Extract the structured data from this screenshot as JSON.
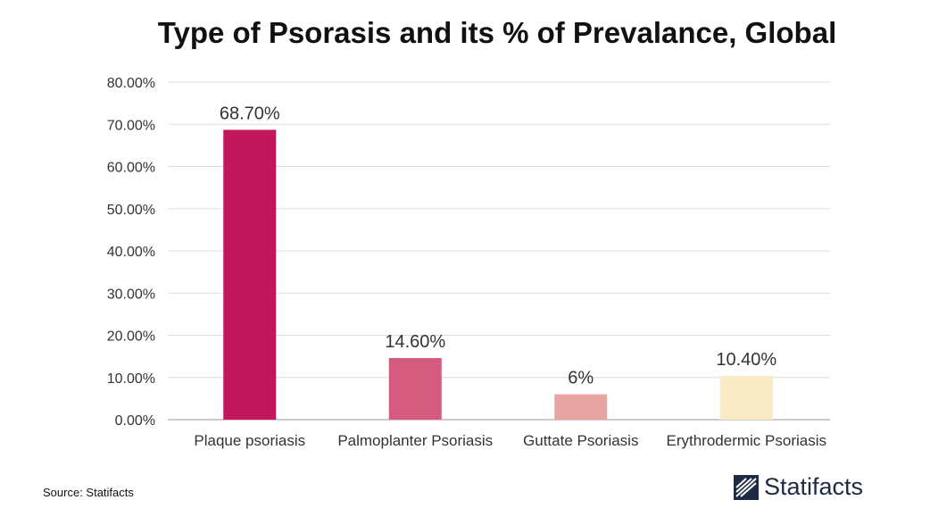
{
  "chart_data": {
    "type": "bar",
    "title": "Type of  Psorasis and its % of Prevalance, Global",
    "categories": [
      "Plaque psoriasis",
      "Palmoplanter Psoriasis",
      "Guttate Psoriasis",
      "Erythrodermic Psoriasis"
    ],
    "values": [
      68.7,
      14.6,
      6,
      10.4
    ],
    "data_labels": [
      "68.70%",
      "14.60%",
      "6%",
      "10.40%"
    ],
    "colors": [
      "#c2185b",
      "#d45a7e",
      "#e8a3a3",
      "#f8ebc6"
    ],
    "ylim": [
      0,
      80
    ],
    "yticks": [
      0,
      10,
      20,
      30,
      40,
      50,
      60,
      70,
      80
    ],
    "ytick_labels": [
      "0.00%",
      "10.00%",
      "20.00%",
      "30.00%",
      "40.00%",
      "50.00%",
      "60.00%",
      "70.00%",
      "80.00%"
    ],
    "xlabel": "",
    "ylabel": "",
    "grid": true
  },
  "footer": {
    "source": "Source: Statifacts",
    "brand": "Statifacts"
  }
}
